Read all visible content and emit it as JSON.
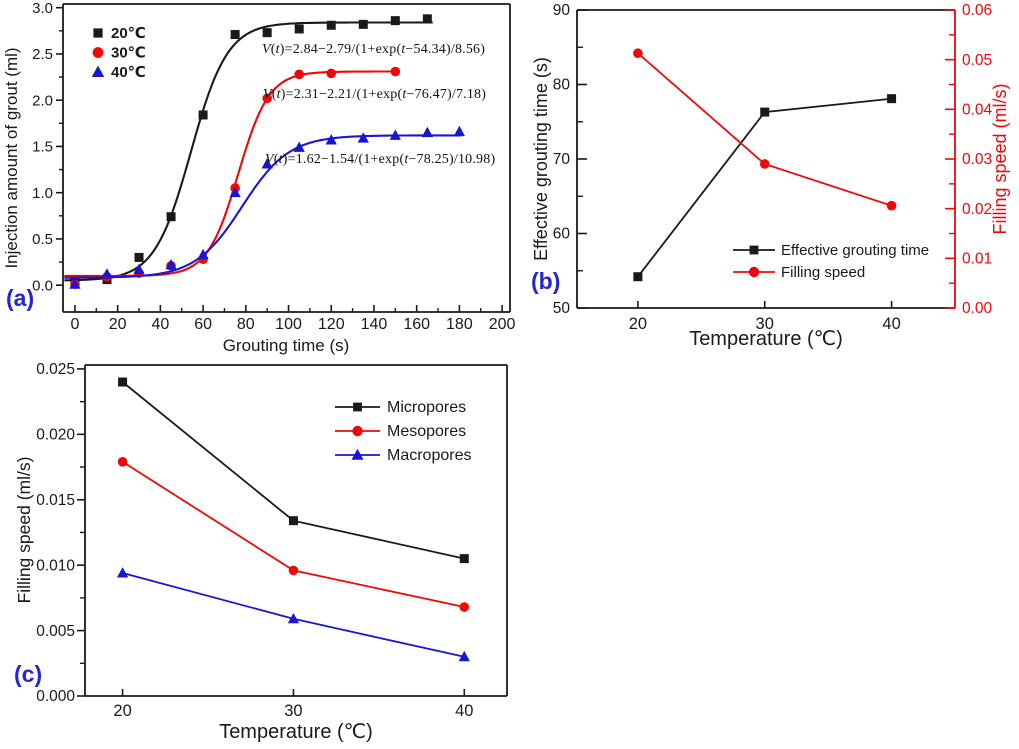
{
  "panels": {
    "a_label": "(a)",
    "b_label": "(b)",
    "c_label": "(c)"
  },
  "colors": {
    "black": "#1a1a1a",
    "red": "#ee0808",
    "blue": "#1717d0",
    "panel_label": "#2525cf",
    "background": "#ffffff"
  },
  "chart_data": [
    {
      "id": "a",
      "type": "scatter-line",
      "title": "",
      "xlabel": "Grouting time (s)",
      "ylabel": "Injection amount of grout (ml)",
      "xlim": [
        -5.6,
        203.7
      ],
      "ylim": [
        -0.29,
        3.04
      ],
      "grid": false,
      "legend_position": "top-left",
      "legend_style": "marker-only",
      "xticks": {
        "values": [
          0,
          20,
          40,
          60,
          80,
          100,
          120,
          140,
          160,
          180,
          200
        ],
        "labels": [
          "0",
          "20",
          "40",
          "60",
          "80",
          "100",
          "120",
          "140",
          "160",
          "180",
          "200"
        ],
        "minor": [
          10,
          30,
          50,
          70,
          90,
          110,
          130,
          150,
          170,
          190
        ]
      },
      "yticks": {
        "values": [
          0,
          0.5,
          1,
          1.5,
          2,
          2.5,
          3
        ],
        "labels": [
          "0.0",
          "0.5",
          "1.0",
          "1.5",
          "2.0",
          "2.5",
          "3.0"
        ],
        "minor": [
          0.25,
          0.75,
          1.25,
          1.75,
          2.25,
          2.75
        ]
      },
      "series": [
        {
          "name": "20℃",
          "color_key": "black",
          "marker": "square",
          "x": [
            0,
            15,
            30,
            45,
            60,
            75,
            90,
            105,
            120,
            135,
            150,
            165
          ],
          "y": [
            0.03,
            0.06,
            0.3,
            0.74,
            1.84,
            2.71,
            2.73,
            2.77,
            2.81,
            2.82,
            2.86,
            2.88
          ],
          "fit": {
            "model": "V(t)=Vmax−A/(1+exp(t−t0)/dt)",
            "vmax": 2.84,
            "a": 2.79,
            "t0": 54.34,
            "dt": 8.56,
            "trange": [
              -5,
              168
            ]
          }
        },
        {
          "name": "30℃",
          "color_key": "red",
          "marker": "circle",
          "x": [
            0,
            15,
            30,
            45,
            60,
            75,
            90,
            105,
            120,
            150
          ],
          "y": [
            0.01,
            0.09,
            0.13,
            0.21,
            0.28,
            1.05,
            2.02,
            2.28,
            2.29,
            2.31
          ],
          "fit": {
            "model": "V(t)=Vmax−A/(1+exp(t−t0)/dt)",
            "vmax": 2.31,
            "a": 2.21,
            "t0": 76.47,
            "dt": 7.18,
            "trange": [
              -5,
              151
            ]
          }
        },
        {
          "name": "40℃",
          "color_key": "blue",
          "marker": "triangle",
          "x": [
            0,
            15,
            30,
            45,
            60,
            75,
            90,
            105,
            120,
            135,
            150,
            165,
            180
          ],
          "y": [
            0.01,
            0.12,
            0.17,
            0.22,
            0.33,
            1.0,
            1.31,
            1.49,
            1.57,
            1.59,
            1.62,
            1.65,
            1.66
          ],
          "fit": {
            "model": "V(t)=Vmax−A/(1+exp(t−t0)/dt)",
            "vmax": 1.62,
            "a": 1.54,
            "t0": 78.25,
            "dt": 10.98,
            "trange": [
              -5,
              182
            ]
          }
        }
      ],
      "annotations": [
        "V(t)=2.84−2.79/(1+exp(t−54.34)/8.56)",
        "V(t)=2.31−2.21/(1+exp(t−76.47)/7.18)",
        "V(t)=1.62−1.54/(1+exp(t−78.25)/10.98)"
      ]
    },
    {
      "id": "b",
      "type": "line",
      "dual_axis": true,
      "xlabel": "Temperature (℃)",
      "ylabel_left": "Effective grouting time (s)",
      "ylabel_right": "Filling speed (ml/s)",
      "xlim": [
        15.2,
        45.0
      ],
      "ylim_left": [
        50,
        90
      ],
      "ylim_right": [
        0,
        0.06
      ],
      "grid": false,
      "legend_position": "center-right",
      "legend_style": "line-marker",
      "xticks": {
        "values": [
          20,
          30,
          40
        ],
        "labels": [
          "20",
          "30",
          "40"
        ],
        "minor": []
      },
      "yticks_left": {
        "values": [
          50,
          60,
          70,
          80,
          90
        ],
        "labels": [
          "50",
          "60",
          "70",
          "80",
          "90"
        ],
        "minor": [
          55,
          65,
          75,
          85
        ]
      },
      "yticks_right": {
        "values": [
          0,
          0.01,
          0.02,
          0.03,
          0.04,
          0.05,
          0.06
        ],
        "labels": [
          "0.00",
          "0.01",
          "0.02",
          "0.03",
          "0.04",
          "0.05",
          "0.06"
        ],
        "minor": [
          0.005,
          0.015,
          0.025,
          0.035,
          0.045,
          0.055
        ]
      },
      "series": [
        {
          "name": "Effective grouting time",
          "axis": "left",
          "color_key": "black",
          "marker": "square",
          "x": [
            20,
            30,
            40
          ],
          "y": [
            54.2,
            76.3,
            78.1
          ]
        },
        {
          "name": "Filling speed",
          "axis": "right",
          "color_key": "red",
          "marker": "circle",
          "x": [
            20,
            30,
            40
          ],
          "y": [
            0.0513,
            0.029,
            0.0206
          ]
        }
      ]
    },
    {
      "id": "c",
      "type": "line",
      "xlabel": "Temperature (℃)",
      "ylabel": "Filling speed (ml/s)",
      "xlim": [
        17.8,
        42.5
      ],
      "ylim": [
        0,
        0.0253
      ],
      "grid": false,
      "legend_position": "top-right",
      "legend_style": "line-marker",
      "xticks": {
        "values": [
          20,
          30,
          40
        ],
        "labels": [
          "20",
          "30",
          "40"
        ],
        "minor": []
      },
      "yticks": {
        "values": [
          0,
          0.005,
          0.01,
          0.015,
          0.02,
          0.025
        ],
        "labels": [
          "0.000",
          "0.005",
          "0.010",
          "0.015",
          "0.020",
          "0.025"
        ],
        "minor": [
          0.0025,
          0.0075,
          0.0125,
          0.0175,
          0.0225
        ]
      },
      "series": [
        {
          "name": "Micropores",
          "color_key": "black",
          "marker": "square",
          "x": [
            20,
            30,
            40
          ],
          "y": [
            0.024,
            0.0134,
            0.0105
          ]
        },
        {
          "name": "Mesopores",
          "color_key": "red",
          "marker": "circle",
          "x": [
            20,
            30,
            40
          ],
          "y": [
            0.0179,
            0.0096,
            0.0068
          ]
        },
        {
          "name": "Macropores",
          "color_key": "blue",
          "marker": "triangle",
          "x": [
            20,
            30,
            40
          ],
          "y": [
            0.0094,
            0.0059,
            0.003
          ]
        }
      ]
    }
  ]
}
